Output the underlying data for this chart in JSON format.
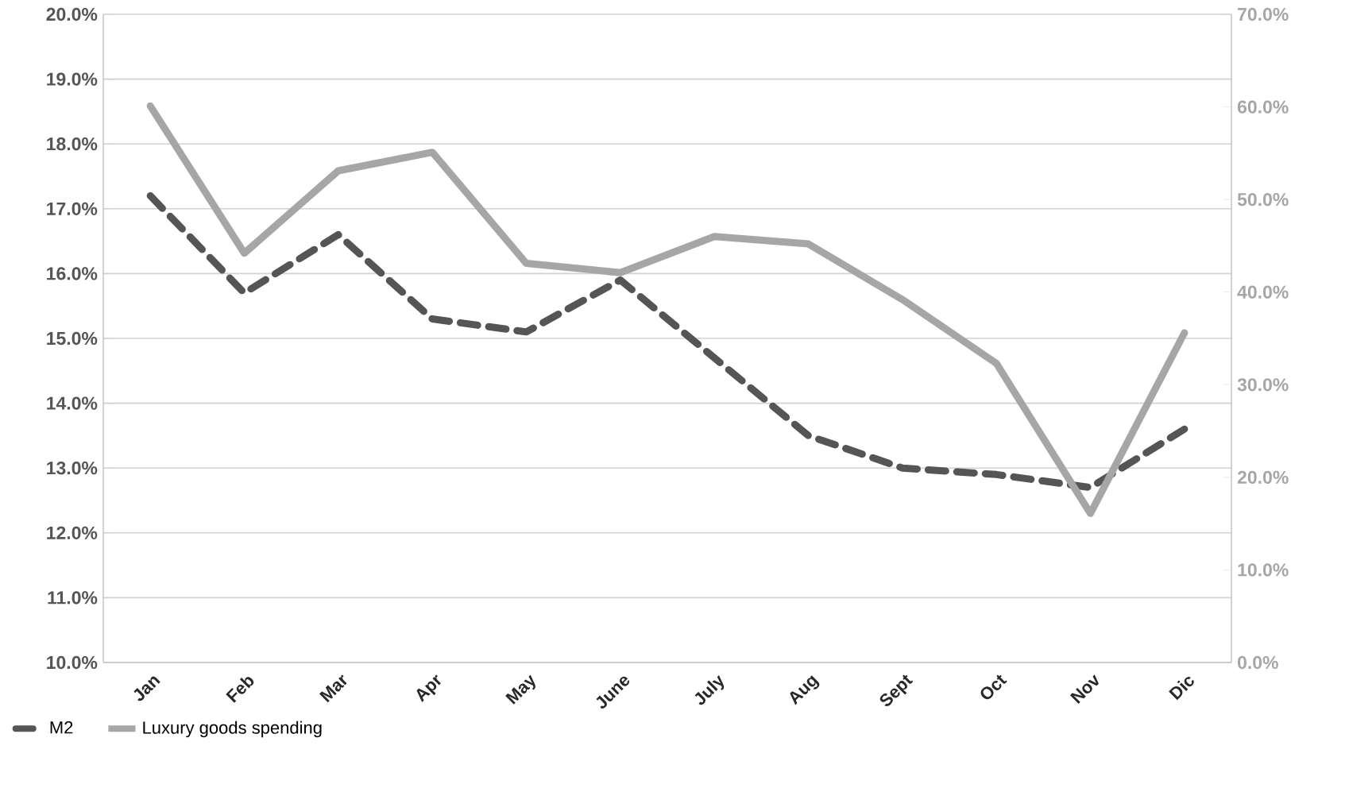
{
  "chart_data": {
    "type": "line",
    "categories": [
      "Jan",
      "Feb",
      "Mar",
      "Apr",
      "May",
      "June",
      "July",
      "Aug",
      "Sept",
      "Oct",
      "Nov",
      "Dic"
    ],
    "series": [
      {
        "name": "M2",
        "color": "#555555",
        "line_style": "dashed",
        "values": [
          17.2,
          15.7,
          16.6,
          15.3,
          15.1,
          15.9,
          14.7,
          13.5,
          13.0,
          12.9,
          12.7,
          13.6
        ]
      },
      {
        "name": "Luxury goods spending",
        "color": "#a6a6a8",
        "line_style": "solid",
        "axis": "y2",
        "values": [
          60.1,
          44.2,
          53.1,
          55.1,
          43.1,
          42.1,
          46.0,
          45.2,
          39.2,
          32.3,
          16.1,
          35.6
        ]
      }
    ],
    "ylim": [
      10,
      20
    ],
    "yticks": [
      {
        "value": 10,
        "label": "10.0%"
      },
      {
        "value": 11,
        "label": "11.0%"
      },
      {
        "value": 12,
        "label": "12.0%"
      },
      {
        "value": 13,
        "label": "13.0%"
      },
      {
        "value": 14,
        "label": "14.0%"
      },
      {
        "value": 15,
        "label": "15.0%"
      },
      {
        "value": 16,
        "label": "16.0%"
      },
      {
        "value": 17,
        "label": "17.0%"
      },
      {
        "value": 18,
        "label": "18.0%"
      },
      {
        "value": 19,
        "label": "19.0%"
      },
      {
        "value": 20,
        "label": "20.0%"
      }
    ],
    "y2lim": [
      0,
      70
    ],
    "y2ticks": [
      {
        "value": 0,
        "label": "0.0%"
      },
      {
        "value": 10,
        "label": "10.0%"
      },
      {
        "value": 20,
        "label": "20.0%"
      },
      {
        "value": 30,
        "label": "30.0%"
      },
      {
        "value": 40,
        "label": "40.0%"
      },
      {
        "value": 50,
        "label": "50.0%"
      },
      {
        "value": 60,
        "label": "60.0%"
      },
      {
        "value": 70,
        "label": "70.0%"
      }
    ],
    "grid": "y",
    "legend": "bottom left",
    "marker": "none"
  }
}
